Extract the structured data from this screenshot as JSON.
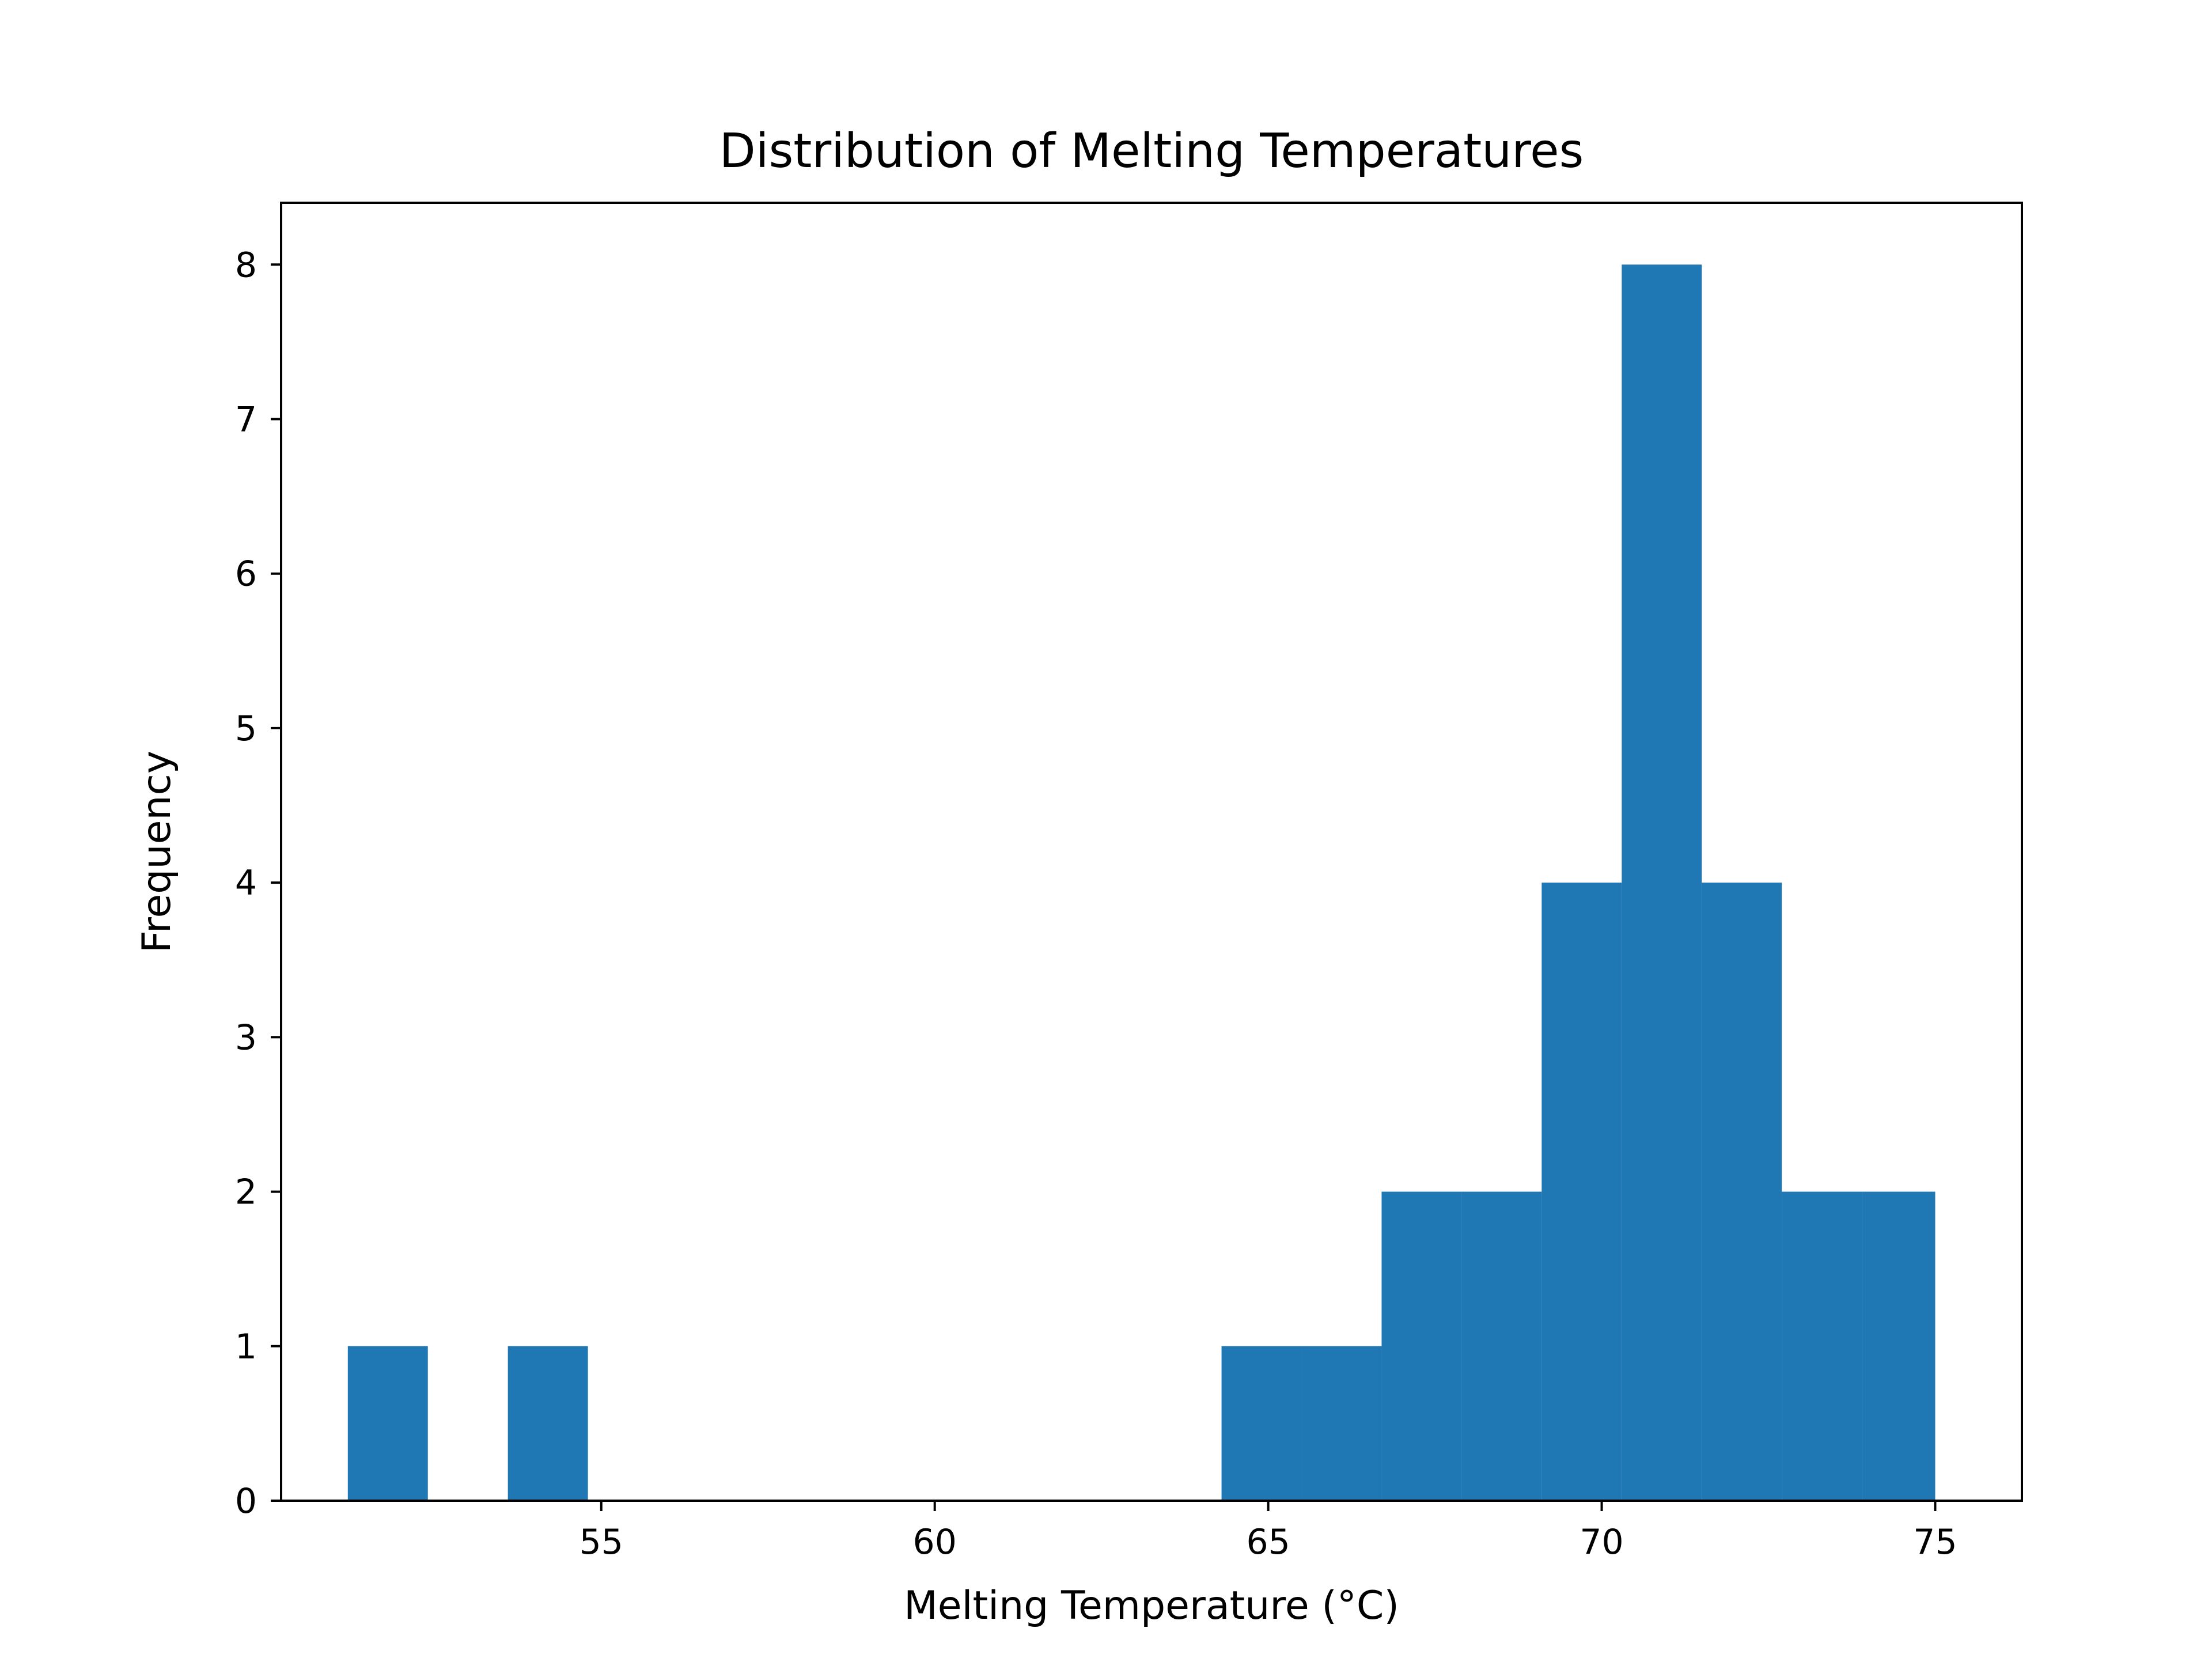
{
  "chart_data": {
    "type": "bar",
    "title": "Distribution of Melting Temperatures",
    "xlabel": "Melting Temperature (°C)",
    "ylabel": "Frequency",
    "xlim": [
      50.2,
      76.3
    ],
    "ylim": [
      0,
      8.4
    ],
    "x_ticks": [
      55,
      60,
      65,
      70,
      75
    ],
    "y_ticks": [
      0,
      1,
      2,
      3,
      4,
      5,
      6,
      7,
      8
    ],
    "bins": [
      {
        "start": 51.2,
        "end": 52.4,
        "count": 1
      },
      {
        "start": 52.4,
        "end": 53.6,
        "count": 0
      },
      {
        "start": 53.6,
        "end": 54.8,
        "count": 1
      },
      {
        "start": 54.8,
        "end": 56.0,
        "count": 0
      },
      {
        "start": 56.0,
        "end": 57.2,
        "count": 0
      },
      {
        "start": 57.2,
        "end": 58.3,
        "count": 0
      },
      {
        "start": 58.3,
        "end": 59.5,
        "count": 0
      },
      {
        "start": 59.5,
        "end": 60.7,
        "count": 0
      },
      {
        "start": 60.7,
        "end": 61.9,
        "count": 0
      },
      {
        "start": 61.9,
        "end": 63.1,
        "count": 0
      },
      {
        "start": 63.1,
        "end": 64.3,
        "count": 0
      },
      {
        "start": 64.3,
        "end": 65.5,
        "count": 1
      },
      {
        "start": 65.5,
        "end": 66.7,
        "count": 1
      },
      {
        "start": 66.7,
        "end": 67.9,
        "count": 2
      },
      {
        "start": 67.9,
        "end": 69.1,
        "count": 2
      },
      {
        "start": 69.1,
        "end": 70.3,
        "count": 4
      },
      {
        "start": 70.3,
        "end": 71.5,
        "count": 8
      },
      {
        "start": 71.5,
        "end": 72.7,
        "count": 4
      },
      {
        "start": 72.7,
        "end": 73.9,
        "count": 2
      },
      {
        "start": 73.9,
        "end": 75.0,
        "count": 2
      }
    ],
    "bar_color": "#1f77b4",
    "grid": false,
    "legend": "none"
  }
}
